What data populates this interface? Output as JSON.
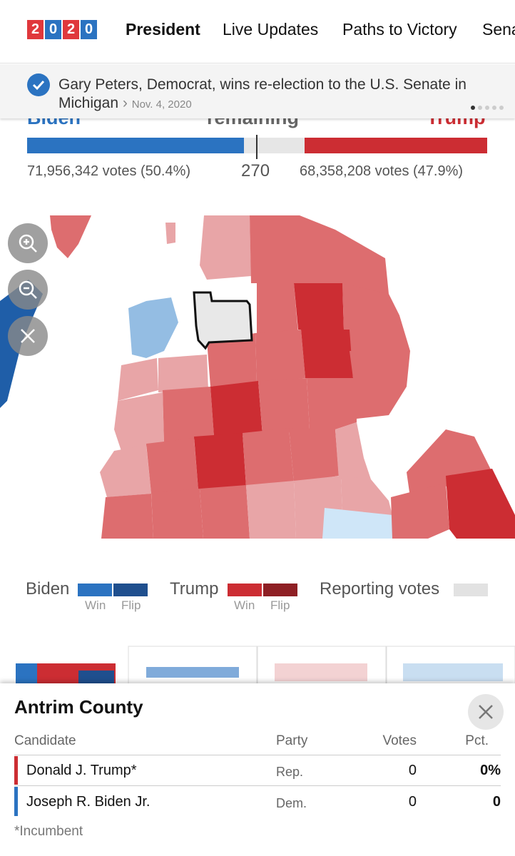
{
  "nav": {
    "logo": [
      "2",
      "0",
      "2",
      "0"
    ],
    "items": [
      "President",
      "Live Updates",
      "Paths to Victory",
      "Sena"
    ]
  },
  "banner": {
    "text": "Gary Peters, Democrat, wins re-election to the U.S. Senate in Michigan",
    "arrow": "›",
    "date": "Nov. 4, 2020"
  },
  "tally": {
    "left_label": "Biden",
    "center_label": "remaining",
    "right_label": "Trump",
    "left_votes": "71,956,342 votes (50.4%)",
    "threshold": "270",
    "right_votes": "68,358,208 votes (47.9%)"
  },
  "legend": {
    "biden": "Biden",
    "biden_win": "Win",
    "biden_flip": "Flip",
    "trump": "Trump",
    "trump_win": "Win",
    "trump_flip": "Flip",
    "reporting": "Reporting votes"
  },
  "popup": {
    "title": "Antrim County",
    "columns": [
      "Candidate",
      "Party",
      "Votes",
      "Pct."
    ],
    "rows": [
      [
        "Donald J. Trump*",
        "Rep.",
        "0",
        "0%"
      ],
      [
        "Joseph R. Biden Jr.",
        "Dem.",
        "0",
        "0"
      ]
    ],
    "footnote": "*Incumbent"
  }
}
